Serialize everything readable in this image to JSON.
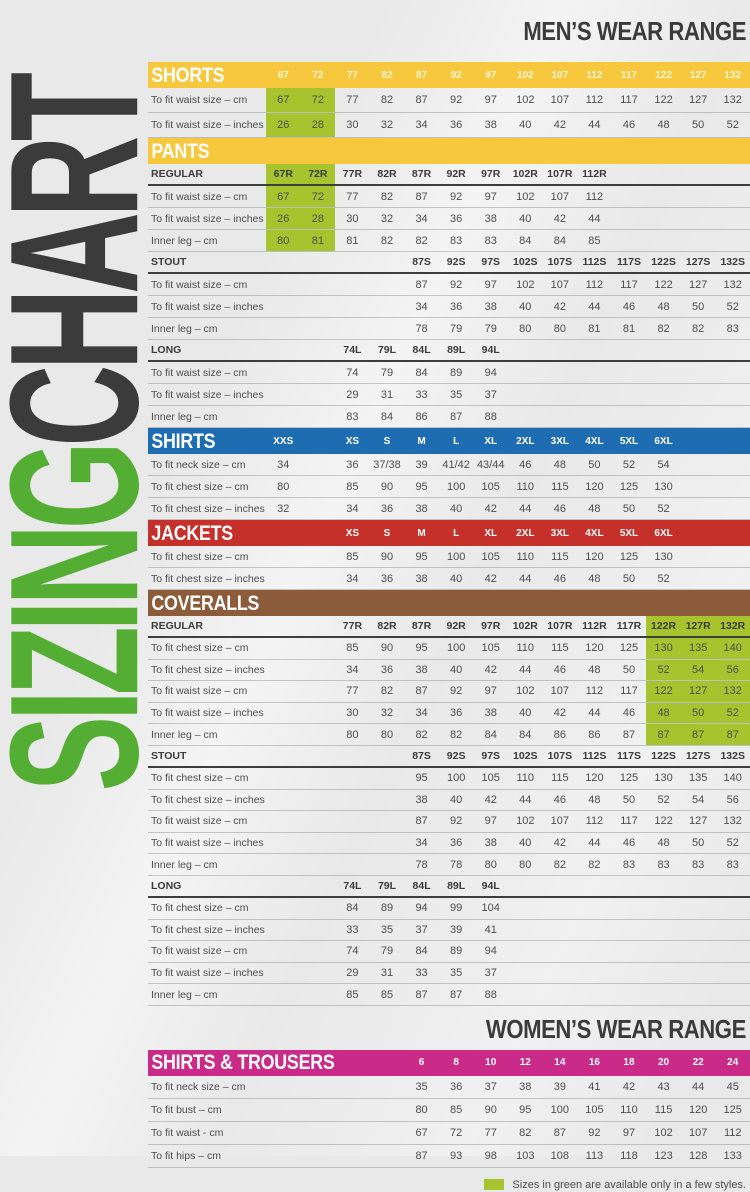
{
  "page": {
    "mens_heading": "MEN’S WEAR RANGE",
    "womens_heading": "WOMEN’S WEAR RANGE",
    "legend_text": "Sizes in green are available only in a few styles.",
    "logo": {
      "sizing": "SIZING",
      "chart": "CHART"
    }
  },
  "colors": {
    "yellow": "#F7C83E",
    "blue": "#1E6DB2",
    "red": "#C5312A",
    "brown": "#8C5B39",
    "pink": "#CB2B88",
    "green_highlight": "#A9C32E",
    "green_logo": "#54AE33",
    "dark": "#3B3B3B"
  },
  "sections": [
    {
      "id": "shorts",
      "group": "mens",
      "title": "SHORTS",
      "color": "yellow",
      "title_span": 1,
      "cols": [
        1,
        2,
        3,
        4,
        5,
        6,
        7,
        8,
        9,
        10,
        11,
        12,
        13,
        14
      ],
      "band_sizes": [
        "67",
        "72",
        "77",
        "82",
        "87",
        "92",
        "97",
        "102",
        "107",
        "112",
        "117",
        "122",
        "127",
        "132"
      ],
      "green": {
        "cols": [
          1,
          2
        ],
        "header": false
      },
      "rows": [
        {
          "label": "To fit waist size – cm",
          "values": [
            "67",
            "72",
            "77",
            "82",
            "87",
            "92",
            "97",
            "102",
            "107",
            "112",
            "117",
            "122",
            "127",
            "132"
          ]
        },
        {
          "label": "To fit waist size – inches",
          "values": [
            "26",
            "28",
            "30",
            "32",
            "34",
            "36",
            "38",
            "40",
            "42",
            "44",
            "46",
            "48",
            "50",
            "52"
          ]
        }
      ]
    },
    {
      "id": "pants",
      "group": "mens",
      "title": "PANTS",
      "color": "yellow",
      "title_span": 3,
      "subsections": [
        {
          "name": "REGULAR",
          "cols": [
            1,
            2,
            3,
            4,
            5,
            6,
            7,
            8,
            9,
            10
          ],
          "sizes": [
            "67R",
            "72R",
            "77R",
            "82R",
            "87R",
            "92R",
            "97R",
            "102R",
            "107R",
            "112R"
          ],
          "green": {
            "cols": [
              1,
              2
            ],
            "header": true
          },
          "rows": [
            {
              "label": "To fit waist size – cm",
              "values": [
                "67",
                "72",
                "77",
                "82",
                "87",
                "92",
                "97",
                "102",
                "107",
                "112"
              ]
            },
            {
              "label": "To fit waist size – inches",
              "values": [
                "26",
                "28",
                "30",
                "32",
                "34",
                "36",
                "38",
                "40",
                "42",
                "44"
              ]
            },
            {
              "label": "Inner leg – cm",
              "values": [
                "80",
                "81",
                "81",
                "82",
                "82",
                "83",
                "83",
                "84",
                "84",
                "85"
              ]
            }
          ]
        },
        {
          "name": "STOUT",
          "cols": [
            5,
            6,
            7,
            8,
            9,
            10,
            11,
            12,
            13,
            14
          ],
          "sizes": [
            "87S",
            "92S",
            "97S",
            "102S",
            "107S",
            "112S",
            "117S",
            "122S",
            "127S",
            "132S"
          ],
          "rows": [
            {
              "label": "To fit waist size – cm",
              "values": [
                "87",
                "92",
                "97",
                "102",
                "107",
                "112",
                "117",
                "122",
                "127",
                "132"
              ]
            },
            {
              "label": "To fit waist size – inches",
              "values": [
                "34",
                "36",
                "38",
                "40",
                "42",
                "44",
                "46",
                "48",
                "50",
                "52"
              ]
            },
            {
              "label": "Inner leg – cm",
              "values": [
                "78",
                "79",
                "79",
                "80",
                "80",
                "81",
                "81",
                "82",
                "82",
                "83"
              ]
            }
          ]
        },
        {
          "name": "LONG",
          "cols": [
            3,
            4,
            5,
            6,
            7
          ],
          "sizes": [
            "74L",
            "79L",
            "84L",
            "89L",
            "94L"
          ],
          "rows": [
            {
              "label": "To fit waist size – cm",
              "values": [
                "74",
                "79",
                "84",
                "89",
                "94"
              ]
            },
            {
              "label": "To fit waist size – inches",
              "values": [
                "29",
                "31",
                "33",
                "35",
                "37"
              ]
            },
            {
              "label": "Inner leg – cm",
              "values": [
                "83",
                "84",
                "86",
                "87",
                "88"
              ]
            }
          ]
        }
      ]
    },
    {
      "id": "shirts",
      "group": "mens",
      "title": "SHIRTS",
      "color": "blue",
      "title_span": 1,
      "cols": [
        1,
        3,
        4,
        5,
        6,
        7,
        8,
        9,
        10,
        11,
        12
      ],
      "band_sizes": [
        "XXS",
        "XS",
        "S",
        "M",
        "L",
        "XL",
        "2XL",
        "3XL",
        "4XL",
        "5XL",
        "6XL"
      ],
      "rows": [
        {
          "label": "To fit neck size – cm",
          "values": [
            "34",
            "36",
            "37/38",
            "39",
            "41/42",
            "43/44",
            "46",
            "48",
            "50",
            "52",
            "54"
          ]
        },
        {
          "label": "To fit chest size – cm",
          "values": [
            "80",
            "85",
            "90",
            "95",
            "100",
            "105",
            "110",
            "115",
            "120",
            "125",
            "130"
          ]
        },
        {
          "label": "To fit chest size – inches",
          "values": [
            "32",
            "34",
            "36",
            "38",
            "40",
            "42",
            "44",
            "46",
            "48",
            "50",
            "52"
          ]
        }
      ]
    },
    {
      "id": "jackets",
      "group": "mens",
      "title": "JACKETS",
      "color": "red",
      "title_span": 1,
      "cols": [
        3,
        4,
        5,
        6,
        7,
        8,
        9,
        10,
        11,
        12
      ],
      "band_sizes": [
        "XS",
        "S",
        "M",
        "L",
        "XL",
        "2XL",
        "3XL",
        "4XL",
        "5XL",
        "6XL"
      ],
      "rows": [
        {
          "label": "To fit chest size – cm",
          "values": [
            "85",
            "90",
            "95",
            "100",
            "105",
            "110",
            "115",
            "120",
            "125",
            "130"
          ]
        },
        {
          "label": "To fit chest size – inches",
          "values": [
            "34",
            "36",
            "38",
            "40",
            "42",
            "44",
            "46",
            "48",
            "50",
            "52"
          ]
        }
      ]
    },
    {
      "id": "coveralls",
      "group": "mens",
      "title": "COVERALLS",
      "color": "brown",
      "title_span": 3,
      "subsections": [
        {
          "name": "REGULAR",
          "cols": [
            3,
            4,
            5,
            6,
            7,
            8,
            9,
            10,
            11,
            12,
            13,
            14
          ],
          "sizes": [
            "77R",
            "82R",
            "87R",
            "92R",
            "97R",
            "102R",
            "107R",
            "112R",
            "117R",
            "122R",
            "127R",
            "132R"
          ],
          "green": {
            "cols": [
              12,
              13,
              14
            ],
            "header": true
          },
          "rows": [
            {
              "label": "To fit chest size – cm",
              "values": [
                "85",
                "90",
                "95",
                "100",
                "105",
                "110",
                "115",
                "120",
                "125",
                "130",
                "135",
                "140"
              ]
            },
            {
              "label": "To fit chest size – inches",
              "values": [
                "34",
                "36",
                "38",
                "40",
                "42",
                "44",
                "46",
                "48",
                "50",
                "52",
                "54",
                "56"
              ]
            },
            {
              "label": "To fit waist size – cm",
              "values": [
                "77",
                "82",
                "87",
                "92",
                "97",
                "102",
                "107",
                "112",
                "117",
                "122",
                "127",
                "132"
              ]
            },
            {
              "label": "To fit waist size – inches",
              "values": [
                "30",
                "32",
                "34",
                "36",
                "38",
                "40",
                "42",
                "44",
                "46",
                "48",
                "50",
                "52"
              ]
            },
            {
              "label": "Inner leg – cm",
              "values": [
                "80",
                "80",
                "82",
                "82",
                "84",
                "84",
                "86",
                "86",
                "87",
                "87",
                "87",
                "87"
              ]
            }
          ]
        },
        {
          "name": "STOUT",
          "cols": [
            5,
            6,
            7,
            8,
            9,
            10,
            11,
            12,
            13,
            14
          ],
          "sizes": [
            "87S",
            "92S",
            "97S",
            "102S",
            "107S",
            "112S",
            "117S",
            "122S",
            "127S",
            "132S"
          ],
          "rows": [
            {
              "label": "To fit chest size – cm",
              "values": [
                "95",
                "100",
                "105",
                "110",
                "115",
                "120",
                "125",
                "130",
                "135",
                "140"
              ]
            },
            {
              "label": "To fit chest size – inches",
              "values": [
                "38",
                "40",
                "42",
                "44",
                "46",
                "48",
                "50",
                "52",
                "54",
                "56"
              ]
            },
            {
              "label": "To fit waist size – cm",
              "values": [
                "87",
                "92",
                "97",
                "102",
                "107",
                "112",
                "117",
                "122",
                "127",
                "132"
              ]
            },
            {
              "label": "To fit waist size – inches",
              "values": [
                "34",
                "36",
                "38",
                "40",
                "42",
                "44",
                "46",
                "48",
                "50",
                "52"
              ]
            },
            {
              "label": "Inner leg – cm",
              "values": [
                "78",
                "78",
                "80",
                "80",
                "82",
                "82",
                "83",
                "83",
                "83",
                "83"
              ]
            }
          ]
        },
        {
          "name": "LONG",
          "cols": [
            3,
            4,
            5,
            6,
            7
          ],
          "sizes": [
            "74L",
            "79L",
            "84L",
            "89L",
            "94L"
          ],
          "rows": [
            {
              "label": "To fit chest size – cm",
              "values": [
                "84",
                "89",
                "94",
                "99",
                "104"
              ]
            },
            {
              "label": "To fit chest size – inches",
              "values": [
                "33",
                "35",
                "37",
                "39",
                "41"
              ]
            },
            {
              "label": "To fit waist size – cm",
              "values": [
                "74",
                "79",
                "84",
                "89",
                "94"
              ]
            },
            {
              "label": "To fit waist size – inches",
              "values": [
                "29",
                "31",
                "33",
                "35",
                "37"
              ]
            },
            {
              "label": "Inner leg – cm",
              "values": [
                "85",
                "85",
                "87",
                "87",
                "88"
              ]
            }
          ]
        }
      ]
    },
    {
      "id": "womens",
      "group": "womens",
      "title": "SHIRTS & TROUSERS",
      "color": "pink",
      "title_span": 5,
      "cols": [
        5,
        6,
        7,
        8,
        9,
        10,
        11,
        12,
        13,
        14
      ],
      "band_sizes": [
        "6",
        "8",
        "10",
        "12",
        "14",
        "16",
        "18",
        "20",
        "22",
        "24"
      ],
      "rows": [
        {
          "label": "To fit neck size – cm",
          "values": [
            "35",
            "36",
            "37",
            "38",
            "39",
            "41",
            "42",
            "43",
            "44",
            "45"
          ]
        },
        {
          "label": "To fit bust – cm",
          "values": [
            "80",
            "85",
            "90",
            "95",
            "100",
            "105",
            "110",
            "115",
            "120",
            "125"
          ]
        },
        {
          "label": "To fit waist - cm",
          "values": [
            "67",
            "72",
            "77",
            "82",
            "87",
            "92",
            "97",
            "102",
            "107",
            "112"
          ]
        },
        {
          "label": "To fit hips – cm",
          "values": [
            "87",
            "93",
            "98",
            "103",
            "108",
            "113",
            "118",
            "123",
            "128",
            "133"
          ]
        }
      ]
    }
  ]
}
